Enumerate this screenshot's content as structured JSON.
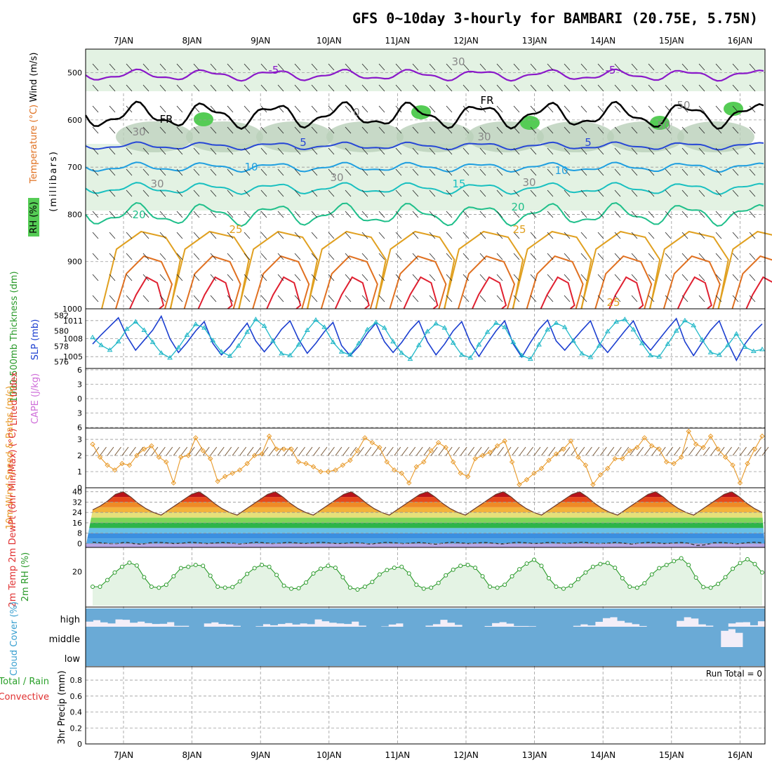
{
  "title": "GFS 0~10day 3-hourly for BAMBARI (20.75E, 5.75N)",
  "colors": {
    "temperature_minus5": "#8a19c9",
    "temperature_freezing": "#000000",
    "temperature_5": "#2747d6",
    "temperature_10": "#1f9fe0",
    "temperature_15": "#19c0c0",
    "temperature_20": "#1fbf8a",
    "temperature_25": "#e0a020",
    "temperature_30": "#e07020",
    "temperature_35": "#e02030",
    "rh_fill": "#e3f2e3",
    "rh_dark": "#b9cfb9",
    "rh_green": "#55cc55",
    "thickness": "#1c3fd0",
    "slp": "#1fb7c7",
    "wind10m": "#e89a2a",
    "rh2m": "#2a9a2a",
    "cloud": "#6aaad6",
    "cloud_clear": "#f3eef8"
  },
  "chart_data": [
    {
      "type": "heatmap",
      "name": "upper_air_section",
      "ylabel": "(millibars)",
      "side_labels": [
        "RH (%)",
        "Temperature (°C)",
        "Wind (m/s)"
      ],
      "ylim": [
        1000,
        450
      ],
      "yticks": [
        500,
        600,
        700,
        800,
        900,
        1000
      ],
      "x_dates": [
        "7JAN",
        "8JAN",
        "9JAN",
        "10JAN",
        "11JAN",
        "12JAN",
        "13JAN",
        "14JAN",
        "15JAN",
        "16JAN"
      ],
      "contour_labels": [
        "-5",
        "-5",
        "FR",
        "FR",
        "5",
        "5",
        "10",
        "10",
        "15",
        "20",
        "20",
        "25",
        "25",
        "25",
        "30",
        "30",
        "30",
        "30",
        "30",
        "30",
        "50",
        "50",
        "0"
      ],
      "isotherms_mb": {
        "minus5": 505,
        "freezing": 590,
        "5": 655,
        "10": 700,
        "15": 745,
        "20": 800
      },
      "grid": true
    },
    {
      "type": "line",
      "name": "thickness_slp",
      "ylabel_left": "1000-500mb Thickness (dm)",
      "ylabel_right": "SLP (mb)",
      "left_ticks": [
        576,
        578,
        580,
        582
      ],
      "right_ticks": [
        1005,
        1008,
        1011
      ],
      "ylim_left": [
        575.5,
        582.5
      ],
      "ylim_right": [
        1003.5,
        1012.5
      ],
      "series": [
        {
          "name": "1000-500mb Thickness",
          "axis": "left",
          "values": [
            578.3,
            579.5,
            580.6,
            581.7,
            579.3,
            577.5,
            578.8,
            580.1,
            581.9,
            579.0,
            577.2,
            578.5,
            580.0,
            581.2,
            578.4,
            576.9,
            578.0,
            579.6,
            581.0,
            578.7,
            577.3,
            578.6,
            580.2,
            581.3,
            578.9,
            577.1,
            578.4,
            579.9,
            581.1,
            578.1,
            576.8,
            578.0,
            579.7,
            581.0,
            578.6,
            577.2,
            578.5,
            580.1,
            581.3,
            578.6,
            576.9,
            578.3,
            580.0,
            581.2,
            578.5,
            576.7,
            578.4,
            580.0,
            581.3,
            578.3,
            576.6,
            578.5,
            580.2,
            581.4,
            578.7,
            577.5,
            578.8,
            580.1,
            581.3,
            578.5,
            577.2,
            578.6,
            580.0,
            581.3,
            578.8,
            577.5,
            578.9,
            580.3,
            581.6,
            578.6,
            576.8,
            578.5,
            580.1,
            581.3,
            578.5,
            576.2,
            578.3,
            579.8,
            580.9
          ]
        },
        {
          "name": "SLP",
          "axis": "right",
          "values": [
            1008.2,
            1006.9,
            1006.1,
            1007.5,
            1009.6,
            1010.8,
            1009.4,
            1007.4,
            1005.6,
            1004.8,
            1006.5,
            1008.6,
            1010.4,
            1009.8,
            1007.7,
            1005.8,
            1005.1,
            1006.8,
            1009.1,
            1011.2,
            1010.1,
            1007.6,
            1005.5,
            1005.2,
            1007.0,
            1009.4,
            1011.1,
            1009.9,
            1007.4,
            1005.8,
            1005.3,
            1007.2,
            1009.5,
            1010.7,
            1009.8,
            1007.5,
            1005.6,
            1004.6,
            1006.9,
            1009.2,
            1010.5,
            1009.8,
            1007.3,
            1005.3,
            1004.8,
            1007.0,
            1009.1,
            1010.6,
            1009.9,
            1007.4,
            1005.2,
            1004.6,
            1007.0,
            1009.5,
            1010.6,
            1009.9,
            1007.6,
            1005.5,
            1004.9,
            1006.8,
            1009.2,
            1010.8,
            1011.2,
            1009.5,
            1007.2,
            1005.2,
            1005.0,
            1007.1,
            1009.3,
            1011.0,
            1010.2,
            1007.8,
            1005.7,
            1005.3,
            1006.9,
            1008.8,
            1006.6,
            1005.9,
            1006.2
          ]
        }
      ]
    },
    {
      "type": "line",
      "name": "lifted_index_cape",
      "ylabel_left": "Lifted Index",
      "ylabel_right": "CAPE (J/kg)",
      "left_ticks": [
        -6,
        -3,
        0,
        3,
        6
      ],
      "left_tick_labels": [
        "6",
        "3",
        "0",
        "3",
        "6"
      ],
      "ylim": [
        -6,
        6
      ],
      "zero_line": true
    },
    {
      "type": "line",
      "name": "wind10m",
      "ylabel": "10m Wind Speed & Barbs (m/s)",
      "yticks": [
        0,
        1,
        2,
        3
      ],
      "ylim": [
        0,
        3.7
      ],
      "series": [
        {
          "name": "10m Wind Speed",
          "values": [
            2.7,
            1.9,
            1.4,
            1.1,
            1.5,
            1.4,
            2.0,
            2.4,
            2.6,
            1.9,
            1.6,
            0.3,
            1.9,
            2.0,
            3.1,
            2.3,
            1.8,
            0.4,
            0.7,
            0.9,
            1.1,
            1.5,
            2.0,
            2.1,
            3.2,
            2.4,
            2.4,
            2.4,
            1.6,
            1.5,
            1.3,
            1.0,
            1.0,
            1.1,
            1.4,
            1.7,
            2.3,
            3.1,
            2.8,
            2.5,
            1.6,
            1.1,
            0.9,
            0.3,
            1.3,
            1.6,
            2.3,
            2.8,
            2.5,
            1.6,
            0.9,
            0.7,
            1.8,
            2.0,
            2.2,
            2.6,
            2.9,
            1.6,
            0.2,
            0.5,
            0.9,
            1.2,
            1.7,
            2.1,
            2.4,
            2.9,
            1.9,
            1.4,
            0.2,
            0.8,
            1.2,
            1.8,
            1.8,
            2.3,
            2.5,
            3.1,
            2.6,
            2.4,
            1.6,
            1.5,
            1.9,
            3.5,
            2.7,
            2.5,
            3.2,
            2.4,
            1.9,
            1.4,
            0.3,
            1.5,
            2.4,
            3.2
          ]
        }
      ]
    },
    {
      "type": "area",
      "name": "temp2m",
      "ylabel": "2m Temp 2m DewPt (6hr Min/Max) (°C)",
      "yticks": [
        0,
        8,
        16,
        24,
        32,
        40
      ],
      "ylim": [
        -3,
        42
      ],
      "series": [
        {
          "name": "2m Temp",
          "values": [
            26,
            29,
            33,
            38,
            40,
            36,
            31,
            27,
            24,
            22,
            26,
            30,
            34,
            38,
            40,
            36,
            31,
            27,
            24,
            22,
            26,
            30,
            34,
            38,
            40,
            36,
            31,
            27,
            24,
            22,
            26,
            30,
            34,
            38,
            40,
            36,
            31,
            27,
            24,
            22,
            26,
            30,
            34,
            38,
            40,
            36,
            31,
            27,
            24,
            22,
            26,
            30,
            34,
            38,
            40,
            36,
            31,
            27,
            24,
            22,
            26,
            30,
            34,
            38,
            40,
            36,
            31,
            27,
            24,
            22,
            26,
            30,
            34,
            38,
            40,
            36,
            31,
            27,
            24,
            22,
            26,
            30,
            34,
            38,
            40,
            36,
            31,
            27,
            24
          ]
        },
        {
          "name": "2m DewPt",
          "values": [
            1,
            0.5,
            0,
            0,
            1,
            0,
            -0.5,
            0.5,
            1,
            0.5,
            0,
            0.3,
            1,
            0.5,
            0,
            0.4,
            0.8,
            0.3,
            -0.3,
            0.2,
            1,
            0.6,
            0,
            0.3,
            0.9,
            0.4,
            0,
            0.5,
            1,
            0.4,
            0,
            0.2,
            0.8,
            0.3,
            -0.4,
            0.3,
            0.9,
            0.5,
            0,
            0.3,
            0.8,
            0.2,
            -0.5,
            0.3,
            1,
            0.5,
            0,
            0.4,
            0.8,
            0.3,
            -0.3,
            0.2,
            1,
            0.6,
            0,
            0.3,
            0.9,
            0.4,
            0,
            0.5,
            1,
            0.4,
            0,
            0.2,
            0.8,
            0.3,
            -0.4,
            0.3,
            0.9,
            0.5,
            0,
            0.3,
            0.8,
            0.2,
            -1.5,
            -1,
            0.5,
            0.8,
            0.2,
            -0.2,
            0.5,
            1,
            0.6
          ]
        }
      ]
    },
    {
      "type": "area",
      "name": "rh2m",
      "ylabel": "2m RH (%)",
      "yticks": [
        20
      ],
      "ylim": [
        2,
        32
      ],
      "series": [
        {
          "name": "2m RH",
          "values": [
            12.0,
            12.0,
            15.5,
            19.5,
            22.5,
            24.7,
            23.2,
            17.0,
            12.0,
            11.5,
            13.0,
            17.5,
            21.8,
            22.5,
            23.5,
            23.0,
            17.8,
            12.0,
            11.5,
            11.8,
            14.8,
            18.8,
            21.8,
            23.5,
            22.5,
            18.2,
            12.5,
            11.0,
            11.2,
            14.2,
            19.0,
            21.5,
            23.0,
            22.0,
            17.0,
            11.5,
            10.5,
            12.0,
            14.5,
            18.5,
            20.8,
            22.0,
            22.5,
            19.0,
            13.0,
            11.0,
            11.5,
            14.0,
            18.0,
            21.0,
            23.0,
            23.5,
            22.0,
            17.5,
            12.0,
            11.5,
            13.0,
            17.5,
            21.2,
            24.2,
            26.2,
            23.0,
            16.5,
            12.0,
            11.0,
            12.5,
            16.0,
            19.5,
            22.5,
            24.0,
            24.5,
            22.0,
            16.5,
            12.0,
            11.5,
            13.8,
            18.5,
            21.8,
            23.5,
            25.5,
            27.0,
            23.5,
            16.8,
            11.8,
            11.5,
            13.5,
            17.0,
            21.5,
            24.5,
            26.5,
            24.0,
            19.5
          ]
        }
      ]
    },
    {
      "type": "bar",
      "name": "cloud_cover",
      "ylabel": "Cloud Cover (%)",
      "level_labels": [
        "high",
        "middle",
        "low"
      ],
      "high_cover_pct": [
        72,
        64,
        76,
        82,
        60,
        62,
        78,
        72,
        80,
        85,
        84,
        75,
        95,
        95,
        100,
        100,
        82,
        76,
        85,
        88,
        95,
        100,
        100,
        97,
        86,
        92,
        85,
        80,
        88,
        82,
        86,
        60,
        70,
        78,
        82,
        85,
        72,
        94,
        100,
        100,
        98,
        88,
        82,
        100,
        100,
        100,
        94,
        86,
        62,
        78,
        90,
        100,
        100,
        100,
        96,
        80,
        75,
        83,
        96,
        96,
        97,
        100,
        100,
        100,
        100,
        100,
        95,
        87,
        93,
        73,
        53,
        48,
        68,
        78,
        86,
        96,
        100,
        100,
        100,
        100,
        68,
        48,
        55,
        87,
        94,
        100,
        100,
        82,
        76,
        75,
        92,
        70
      ],
      "middle_cover_pct": [
        100,
        100,
        100,
        100,
        100,
        100,
        100,
        100,
        100,
        100,
        100,
        100,
        100,
        100,
        100,
        100,
        100,
        100,
        100,
        100,
        100,
        100,
        100,
        100,
        100,
        100,
        100,
        100,
        100,
        100,
        100,
        100,
        100,
        100,
        100,
        100,
        100,
        100,
        100,
        100,
        100,
        100,
        100,
        100,
        100,
        100,
        100,
        100,
        100,
        100,
        100,
        100,
        100,
        100,
        100,
        100,
        100,
        100,
        100,
        100,
        100,
        100,
        100,
        100,
        100,
        100,
        100,
        100,
        100,
        100,
        100,
        100,
        100,
        100,
        100,
        100,
        100,
        100,
        100,
        100,
        100,
        100,
        100,
        100,
        100,
        100,
        20,
        12,
        30,
        100,
        100,
        100
      ],
      "low_cover_pct": [
        100,
        100,
        100,
        100,
        100,
        100,
        100,
        100,
        100,
        100,
        100,
        100,
        100,
        100,
        100,
        100,
        100,
        100,
        100,
        100,
        100,
        100,
        100,
        100,
        100,
        100,
        100,
        100,
        100,
        100,
        100,
        100,
        100,
        100,
        100,
        100,
        100,
        100,
        100,
        100,
        100,
        100,
        100,
        100,
        100,
        100,
        100,
        100,
        100,
        100,
        100,
        100,
        100,
        100,
        100,
        100,
        100,
        100,
        100,
        100,
        100,
        100,
        100,
        100,
        100,
        100,
        100,
        100,
        100,
        100,
        100,
        100,
        100,
        100,
        100,
        100,
        100,
        100,
        100,
        100,
        100,
        100,
        100,
        100,
        100,
        100,
        100,
        100,
        100,
        100,
        100,
        100
      ]
    },
    {
      "type": "bar",
      "name": "precip3hr",
      "ylabel": "3hr Precip (mm)",
      "legend_labels": [
        "Total / Rain",
        "Convective"
      ],
      "yticks": [
        0,
        0.2,
        0.4,
        0.6,
        0.8
      ],
      "ylim": [
        0,
        0.95
      ],
      "annotation": "Run Total = 0",
      "values": []
    }
  ]
}
